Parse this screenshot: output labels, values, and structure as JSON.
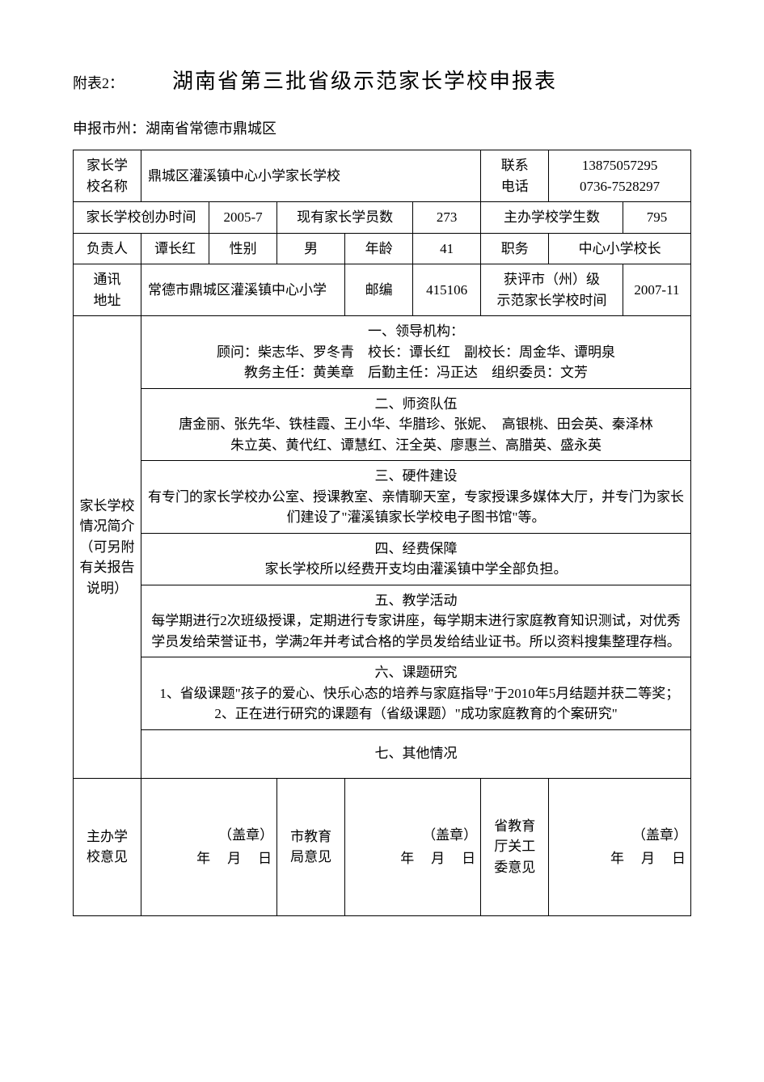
{
  "header": {
    "attach": "附表2：",
    "title": "湖南省第三批省级示范家长学校申报表"
  },
  "applicant": {
    "label": "申报市州：",
    "value": "湖南省常德市鼎城区"
  },
  "row1": {
    "school_name_label": "家长学<br>校名称",
    "school_name": "鼎城区灌溪镇中心小学家长学校",
    "phone_label": "联系<br>电话",
    "phone1": "13875057295",
    "phone2": "0736-7528297"
  },
  "row2": {
    "found_label": "家长学校创办时间",
    "found_value": "2005-7",
    "members_label": "现有家长学员数",
    "members_value": "273",
    "students_label": "主办学校学生数",
    "students_value": "795"
  },
  "row3": {
    "leader_label": "负责人",
    "leader_name": "谭长红",
    "gender_label": "性别",
    "gender_value": "男",
    "age_label": "年龄",
    "age_value": "41",
    "position_label": "职务",
    "position_value": "中心小学校长"
  },
  "row4": {
    "addr_label": "通讯<br>地址",
    "addr_value": "常德市鼎城区灌溪镇中心小学",
    "post_label": "邮编",
    "post_value": "415106",
    "award_label": "获评市（州）级<br>示范家长学校时间",
    "award_value": "2007-11"
  },
  "intro": {
    "side_label": "家长学校<br>情况简介<br>（可另附<br>有关报告<br>说明）",
    "sec1": "一、领导机构：<br>顾问：柴志华、罗冬青　校长：谭长红　副校长：周金华、谭明泉<br>教务主任：黄美章　后勤主任：冯正达　组织委员：文芳",
    "sec2": "二、师资队伍<br>唐金丽、张先华、铁桂霞、王小华、华腊珍、张妮、　高银桃、田会英、秦泽林<br>朱立英、黄代红、谭慧红、汪全英、廖惠兰、高腊英、盛永英",
    "sec3": "三、硬件建设<br>有专门的家长学校办公室、授课教室、亲情聊天室，专家授课多媒体大厅，并专门为家长们建设了\"灌溪镇家长学校电子图书馆\"等。",
    "sec4": "四、经费保障<br>家长学校所以经费开支均由灌溪镇中学全部负担。",
    "sec5": "五、教学活动<br>每学期进行2次班级授课，定期进行专家讲座，每学期末进行家庭教育知识测试，对优秀学员发给荣誉证书，学满2年并考试合格的学员发给结业证书。所以资料搜集整理存档。",
    "sec6": "六、课题研究<br>1、省级课题\"孩子的爱心、快乐心态的培养与家庭指导\"于2010年5月结题并获二等奖；　2、正在进行研究的课题有（省级课题）\"成功家庭教育的个案研究\"",
    "sec7": "七、其他情况"
  },
  "opinions": {
    "col1_label": "主办学<br>校意见",
    "col2_label": "市教育<br>局意见",
    "col3_label": "省教育<br>厅关工<br>委意见",
    "seal": "（盖章）",
    "date": "年　月　日"
  }
}
